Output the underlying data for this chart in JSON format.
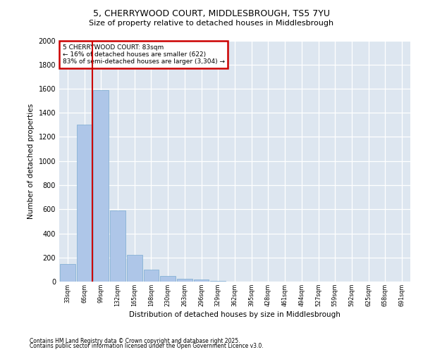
{
  "title_line1": "5, CHERRYWOOD COURT, MIDDLESBROUGH, TS5 7YU",
  "title_line2": "Size of property relative to detached houses in Middlesbrough",
  "xlabel": "Distribution of detached houses by size in Middlesbrough",
  "ylabel": "Number of detached properties",
  "bins": [
    "33sqm",
    "66sqm",
    "99sqm",
    "132sqm",
    "165sqm",
    "198sqm",
    "230sqm",
    "263sqm",
    "296sqm",
    "329sqm",
    "362sqm",
    "395sqm",
    "428sqm",
    "461sqm",
    "494sqm",
    "527sqm",
    "559sqm",
    "592sqm",
    "625sqm",
    "658sqm",
    "691sqm"
  ],
  "values": [
    145,
    1300,
    1590,
    590,
    220,
    100,
    48,
    25,
    15,
    5,
    2,
    0,
    0,
    0,
    0,
    0,
    0,
    0,
    0,
    0,
    0
  ],
  "bar_color": "#aec6e8",
  "bar_edge_color": "#7aaad0",
  "vline_color": "#cc0000",
  "vline_pos": 1.5,
  "annotation_text": "5 CHERRYWOOD COURT: 83sqm\n← 16% of detached houses are smaller (622)\n83% of semi-detached houses are larger (3,304) →",
  "annotation_box_color": "#cc0000",
  "ylim": [
    0,
    2000
  ],
  "yticks": [
    0,
    200,
    400,
    600,
    800,
    1000,
    1200,
    1400,
    1600,
    1800,
    2000
  ],
  "background_color": "#dde6f0",
  "grid_color": "#ffffff",
  "footer_line1": "Contains HM Land Registry data © Crown copyright and database right 2025.",
  "footer_line2": "Contains public sector information licensed under the Open Government Licence v3.0."
}
